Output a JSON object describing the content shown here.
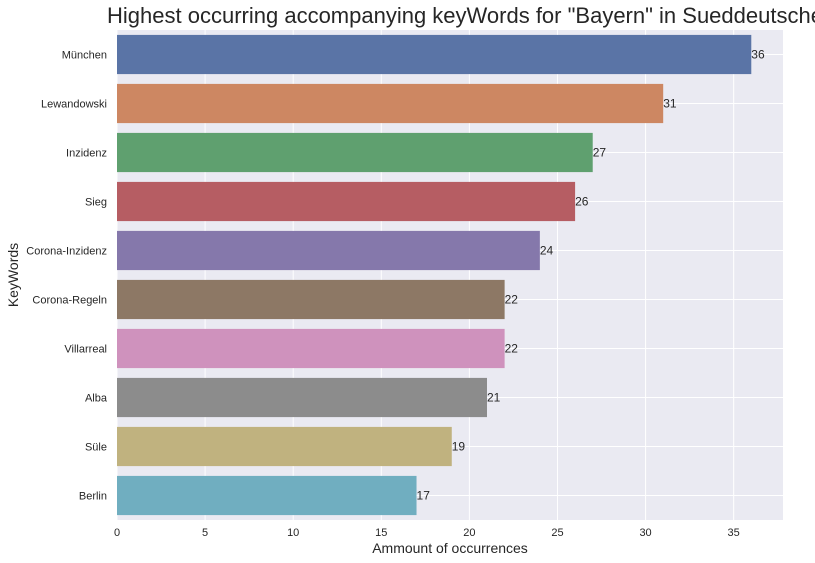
{
  "chart_data": {
    "type": "bar",
    "orientation": "horizontal",
    "title": "Highest occurring accompanying keyWords for \"Bayern\" in Sueddeutsche",
    "xlabel": "Ammount of occurrences",
    "ylabel": "KeyWords",
    "categories": [
      "München",
      "Lewandowski",
      "Inzidenz",
      "Sieg",
      "Corona-Inzidenz",
      "Corona-Regeln",
      "Villarreal",
      "Alba",
      "Süle",
      "Berlin"
    ],
    "values": [
      36,
      31,
      27,
      26,
      24,
      22,
      22,
      21,
      19,
      17
    ],
    "value_labels": [
      "36",
      "31",
      "27",
      "26",
      "24",
      "22",
      "22",
      "21",
      "19",
      "17"
    ],
    "colors": [
      "#5a74a6",
      "#cd8762",
      "#5fa06f",
      "#b65d63",
      "#8578ab",
      "#8d7865",
      "#cf92bd",
      "#8c8c8c",
      "#c0b27f",
      "#70aec0"
    ],
    "xlim": [
      0,
      37.8
    ],
    "xticks": [
      "0",
      "5",
      "10",
      "15",
      "20",
      "25",
      "30",
      "35"
    ],
    "grid": true,
    "background": "#eaeaf2",
    "grid_color": "#ffffff",
    "legend": "none"
  }
}
